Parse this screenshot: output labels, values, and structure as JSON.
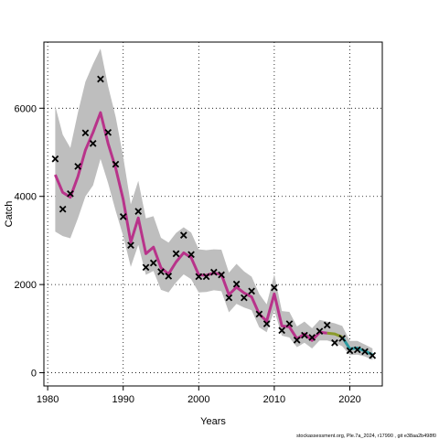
{
  "chart_data": {
    "type": "line",
    "xlabel": "Years",
    "ylabel": "Catch",
    "xlim": [
      1979.5,
      2024.3
    ],
    "ylim": [
      -300,
      7500
    ],
    "xticks": [
      1980,
      1990,
      2000,
      2010,
      2020
    ],
    "yticks": [
      0,
      2000,
      4000,
      6000
    ],
    "grid": true,
    "observed": {
      "x": [
        1981,
        1982,
        1983,
        1984,
        1985,
        1986,
        1987,
        1988,
        1989,
        1990,
        1991,
        1992,
        1993,
        1994,
        1995,
        1996,
        1997,
        1998,
        1999,
        2000,
        2001,
        2002,
        2003,
        2004,
        2005,
        2006,
        2007,
        2008,
        2009,
        2010,
        2011,
        2012,
        2013,
        2014,
        2015,
        2016,
        2017,
        2018,
        2019,
        2020,
        2021,
        2022,
        2023
      ],
      "y": [
        4850,
        3710,
        4060,
        4680,
        5440,
        5200,
        6660,
        5450,
        4730,
        3540,
        2890,
        3660,
        2390,
        2490,
        2290,
        2190,
        2700,
        3120,
        2680,
        2180,
        2180,
        2280,
        2220,
        1700,
        2010,
        1700,
        1850,
        1330,
        1110,
        1930,
        960,
        1110,
        740,
        850,
        800,
        940,
        1080,
        680,
        780,
        500,
        520,
        480,
        390
      ]
    },
    "series": [
      {
        "color": "#b8338a",
        "x": [
          1981,
          1982,
          1983,
          1984,
          1985,
          1986,
          1987,
          1988,
          1989,
          1990,
          1991,
          1992,
          1993,
          1994,
          1995,
          1996,
          1997,
          1998,
          1999,
          2000,
          2001,
          2002,
          2003,
          2004,
          2005,
          2006,
          2007,
          2008,
          2009,
          2010,
          2011,
          2012,
          2013,
          2014,
          2015,
          2016,
          2017
        ],
        "y": [
          4490,
          4090,
          3980,
          4450,
          5050,
          5450,
          5900,
          5200,
          4640,
          3930,
          2960,
          3510,
          2700,
          2850,
          2380,
          2240,
          2510,
          2720,
          2610,
          2220,
          2210,
          2260,
          2230,
          1770,
          1940,
          1810,
          1720,
          1330,
          1170,
          1790,
          1060,
          1040,
          770,
          880,
          730,
          920,
          900
        ]
      },
      {
        "color": "#8a9a2a",
        "x": [
          2017,
          2018,
          2019
        ],
        "y": [
          900,
          880,
          810
        ]
      },
      {
        "color": "#2a9aa0",
        "x": [
          2019,
          2020,
          2021,
          2022,
          2023
        ],
        "y": [
          810,
          540,
          560,
          490,
          410
        ]
      }
    ],
    "interval": {
      "x": [
        1981,
        1982,
        1983,
        1984,
        1985,
        1986,
        1987,
        1988,
        1989,
        1990,
        1991,
        1992,
        1993,
        1994,
        1995,
        1996,
        1997,
        1998,
        1999,
        2000,
        2001,
        2002,
        2003,
        2004,
        2005,
        2006,
        2007,
        2008,
        2009,
        2010,
        2011,
        2012,
        2013,
        2014,
        2015,
        2016,
        2017,
        2018,
        2019,
        2020,
        2021,
        2022,
        2023
      ],
      "upper": [
        6050,
        5400,
        5100,
        5900,
        6600,
        7000,
        7350,
        6500,
        5800,
        4900,
        3820,
        4350,
        3500,
        3550,
        3060,
        2950,
        3170,
        3300,
        3180,
        2800,
        2780,
        2800,
        2790,
        2270,
        2470,
        2300,
        2180,
        1790,
        1550,
        2230,
        1400,
        1380,
        1050,
        1160,
        1010,
        1200,
        1160,
        1120,
        1060,
        720,
        720,
        640,
        550
      ],
      "lower": [
        3200,
        3100,
        3050,
        3500,
        4000,
        4250,
        4850,
        4300,
        3670,
        3100,
        2400,
        2900,
        2220,
        2310,
        1880,
        1820,
        2050,
        2230,
        2120,
        1820,
        1830,
        1870,
        1850,
        1370,
        1560,
        1480,
        1420,
        1030,
        920,
        1420,
        840,
        800,
        580,
        680,
        550,
        730,
        730,
        680,
        600,
        400,
        410,
        370,
        290
      ]
    },
    "watermark": "stockassessment.org, Ple.7a_2024, r17990 , git e38aa2b498f0"
  }
}
